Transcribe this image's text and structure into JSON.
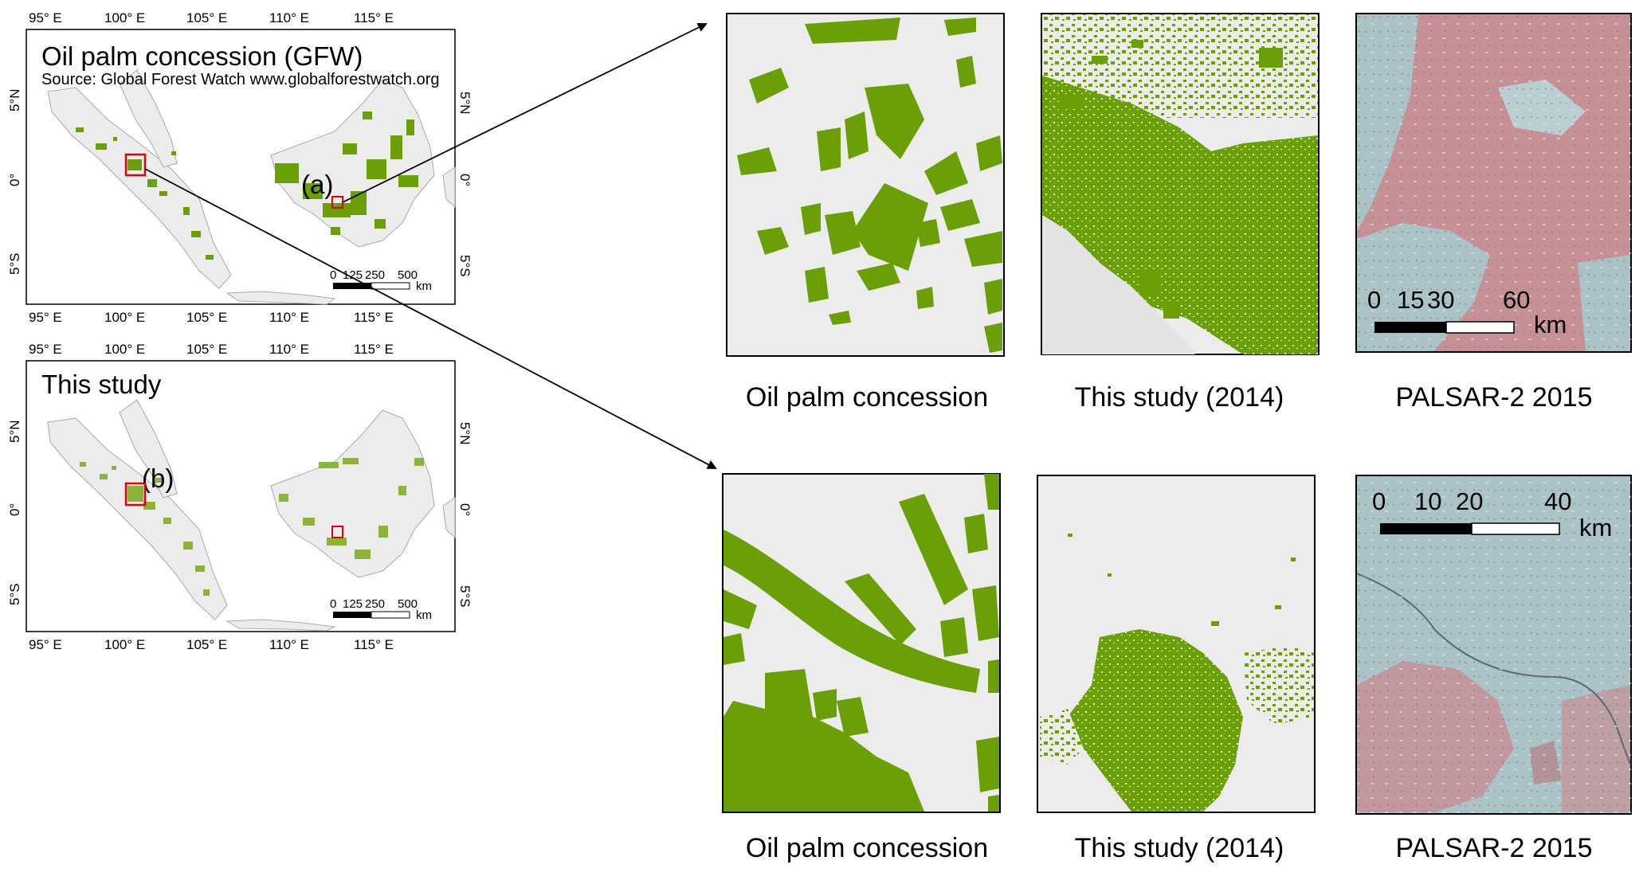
{
  "map_a": {
    "title": "Oil palm concession (GFW)",
    "source": "Source: Global Forest Watch  www.globalforestwatch.org",
    "label": "(a)",
    "lon_ticks": [
      "95° E",
      "100° E",
      "105° E",
      "110° E",
      "115° E"
    ],
    "lat_ticks": [
      "5°N",
      "0°",
      "5°S"
    ],
    "scalebar": {
      "labels": [
        "0",
        "125",
        "250",
        "500"
      ],
      "unit": "km"
    }
  },
  "map_b": {
    "title": "This study",
    "label": "(b)",
    "lon_ticks": [
      "95° E",
      "100° E",
      "105° E",
      "110° E",
      "115° E"
    ],
    "lat_ticks": [
      "5°N",
      "0°",
      "5°S"
    ],
    "scalebar": {
      "labels": [
        "0",
        "125",
        "250",
        "500"
      ],
      "unit": "km"
    }
  },
  "row_top": {
    "captions": [
      "Oil palm concession",
      "This study (2014)",
      "PALSAR-2 2015"
    ],
    "scalebar": {
      "labels": [
        "0",
        "15",
        "30",
        "60"
      ],
      "unit": "km"
    }
  },
  "row_bottom": {
    "captions": [
      "Oil palm concession",
      "This study (2014)",
      "PALSAR-2 2015"
    ],
    "scalebar": {
      "labels": [
        "0",
        "10",
        "20",
        "40"
      ],
      "unit": "km"
    }
  },
  "colors": {
    "oil_palm": "#6a9f06",
    "land": "#ececec",
    "highlight": "#e0000f",
    "palsar_base": "#a9c3c6",
    "palsar_pink": "#c69196"
  }
}
